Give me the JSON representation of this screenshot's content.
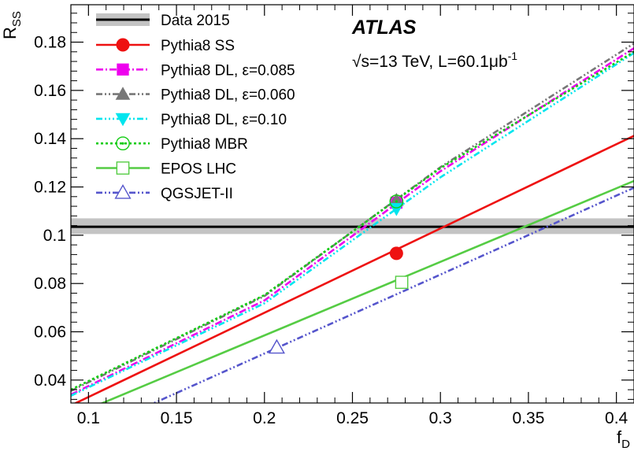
{
  "chart_data": {
    "type": "line",
    "title": "",
    "xlabel": "f",
    "xlabel_sub": "D",
    "ylabel": "R",
    "ylabel_sub": "SS",
    "xlim": [
      0.09,
      0.41
    ],
    "ylim": [
      0.0305,
      0.1955
    ],
    "x_ticks": [
      0.1,
      0.15,
      0.2,
      0.25,
      0.3,
      0.35,
      0.4
    ],
    "x_tick_labels": [
      "0.1",
      "0.15",
      "0.2",
      "0.25",
      "0.3",
      "0.35",
      "0.4"
    ],
    "y_ticks": [
      0.04,
      0.06,
      0.08,
      0.1,
      0.12,
      0.14,
      0.16,
      0.18
    ],
    "y_tick_labels": [
      "0.04",
      "0.06",
      "0.08",
      "0.1",
      "0.12",
      "0.14",
      "0.16",
      "0.18"
    ],
    "grid": false,
    "legend_position": "top-left",
    "annotations": {
      "experiment": "ATLAS",
      "sqrt_symbol": "√",
      "energy_text": "s=13 TeV, L=60.1",
      "lumi_unit": "μb",
      "lumi_exp": "-1"
    },
    "data_band": {
      "name": "Data 2015",
      "y": 0.1035,
      "y_low": 0.1005,
      "y_high": 0.107,
      "line_color": "#000000",
      "band_color": "#c4c4c4"
    },
    "series": [
      {
        "name": "Pythia8 SS",
        "color": "#ee1111",
        "dash": "solid",
        "marker": "circle-filled",
        "x": [
          0.09,
          0.41
        ],
        "y": [
          0.0295,
          0.1412
        ],
        "marker_point": [
          0.275,
          0.0925
        ]
      },
      {
        "name": "Pythia8 DL, ε=0.085",
        "color": "#ee00ee",
        "dash": "dashdot",
        "marker": "square-filled",
        "x": [
          0.09,
          0.2,
          0.3,
          0.41
        ],
        "y": [
          0.034,
          0.073,
          0.1265,
          0.1775
        ],
        "marker_point": [
          0.275,
          0.1135
        ]
      },
      {
        "name": "Pythia8 DL, ε=0.060",
        "color": "#777777",
        "dash": "dashdotdot",
        "marker": "triangle-up-filled",
        "x": [
          0.09,
          0.2,
          0.3,
          0.41
        ],
        "y": [
          0.0355,
          0.0748,
          0.1282,
          0.1795
        ],
        "marker_point": [
          0.275,
          0.1145
        ]
      },
      {
        "name": "Pythia8 DL, ε=0.10",
        "color": "#00e5ee",
        "dash": "dashdotdotdot",
        "marker": "triangle-down-filled",
        "x": [
          0.09,
          0.2,
          0.3,
          0.41
        ],
        "y": [
          0.0335,
          0.0718,
          0.124,
          0.1755
        ],
        "marker_point": [
          0.275,
          0.111
        ]
      },
      {
        "name": "Pythia8 MBR",
        "color": "#11cc11",
        "dash": "dotted",
        "marker": "circle-open-dot",
        "x": [
          0.09,
          0.2,
          0.3,
          0.41
        ],
        "y": [
          0.036,
          0.0752,
          0.1278,
          0.176
        ],
        "marker_point": [
          0.275,
          0.114
        ]
      },
      {
        "name": "EPOS LHC",
        "color": "#55cc44",
        "dash": "solid",
        "marker": "square-open",
        "x": [
          0.09,
          0.41
        ],
        "y": [
          0.025,
          0.1225
        ],
        "marker_point": [
          0.278,
          0.0805
        ]
      },
      {
        "name": "QGSJET-II",
        "color": "#5555cc",
        "dash": "dashdotdot",
        "marker": "triangle-up-open",
        "x": [
          0.09,
          0.41
        ],
        "y": [
          0.015,
          0.1197
        ],
        "marker_point": [
          0.207,
          0.0535
        ]
      }
    ]
  }
}
